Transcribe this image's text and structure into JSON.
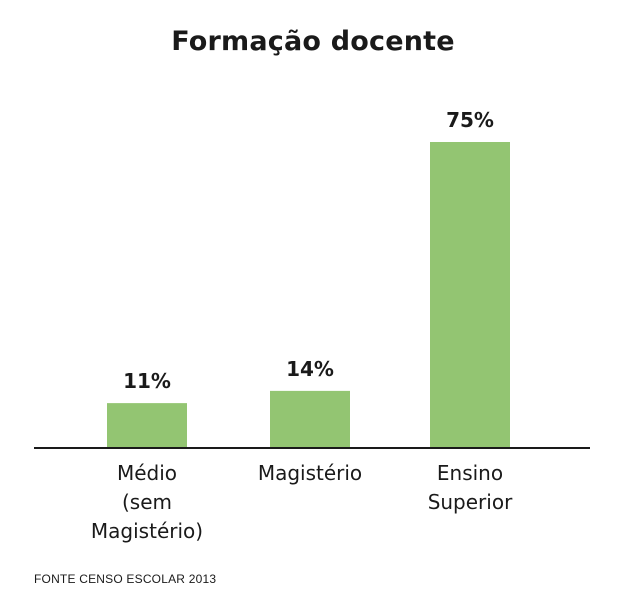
{
  "chart_data": {
    "type": "bar",
    "title": "Formação docente",
    "categories": [
      [
        "Médio",
        "(sem",
        "Magistério)"
      ],
      [
        "Magistério"
      ],
      [
        "Ensino",
        "Superior"
      ]
    ],
    "values": [
      11,
      14,
      75
    ],
    "value_labels": [
      "11%",
      "14%",
      "75%"
    ],
    "xlabel": "",
    "ylabel": "",
    "ylim": [
      0,
      75
    ],
    "grid": false,
    "bar_color": "#93c572"
  },
  "footer": {
    "source": "FONTE CENSO ESCOLAR 2013"
  }
}
